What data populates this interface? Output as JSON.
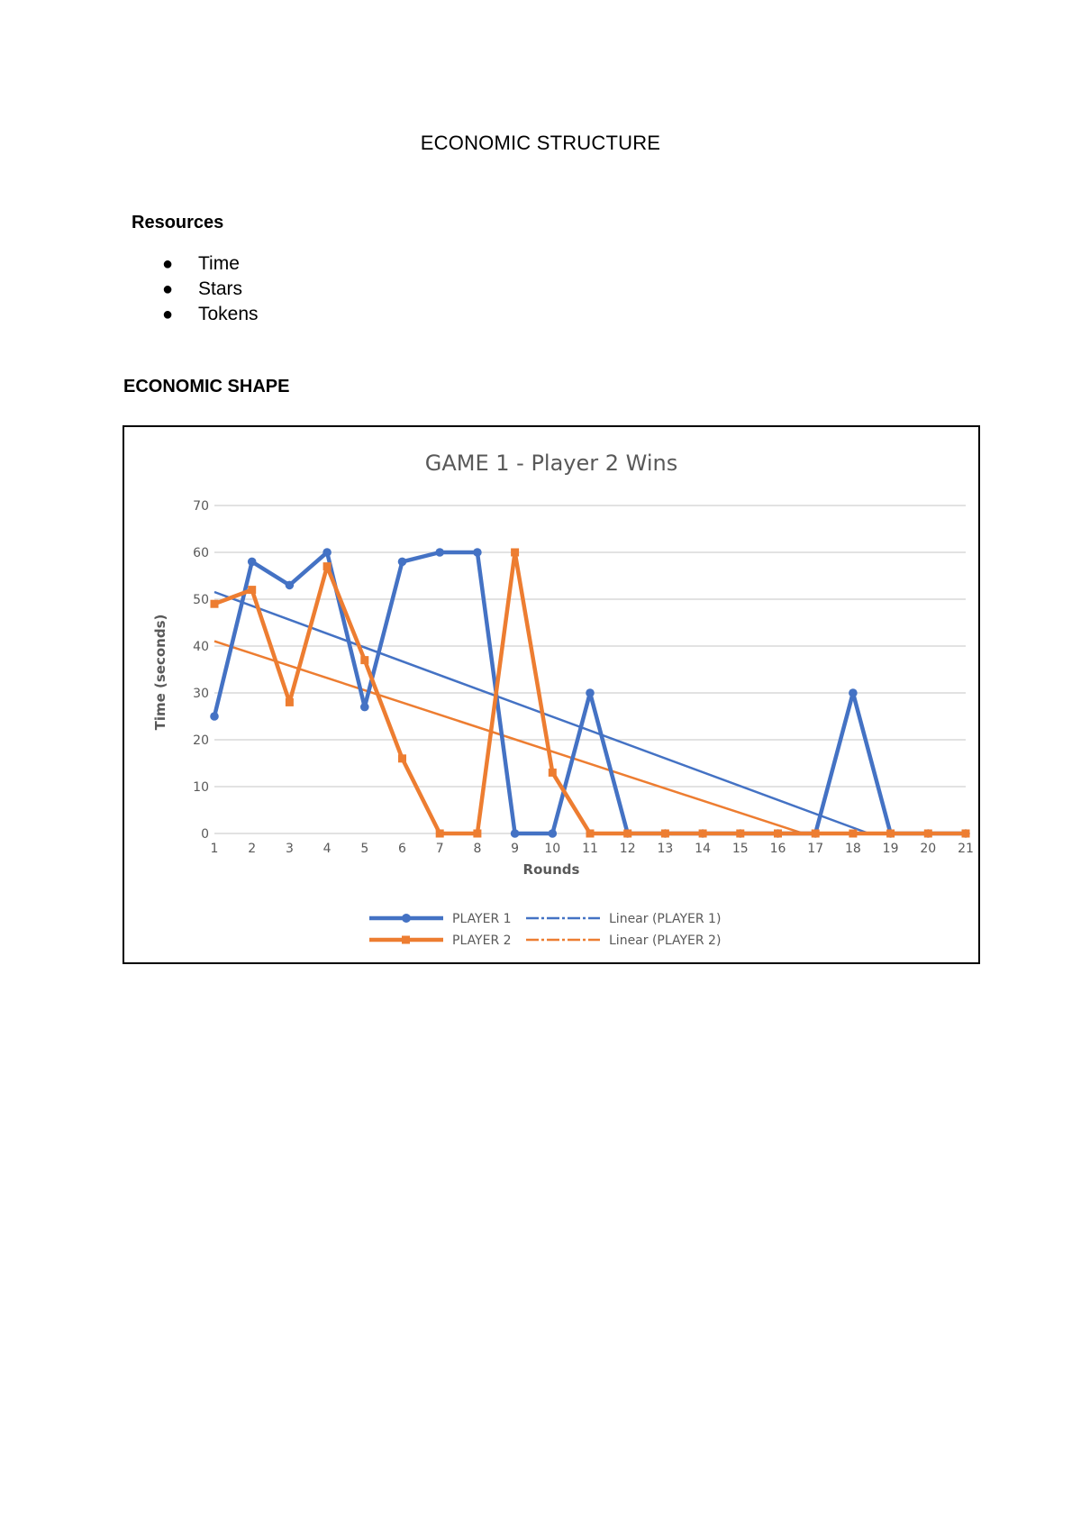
{
  "document": {
    "title": "ECONOMIC STRUCTURE",
    "resources_heading": "Resources",
    "resources": [
      "Time",
      "Stars",
      "Tokens"
    ],
    "shape_heading": "ECONOMIC SHAPE"
  },
  "chart_data": {
    "type": "line",
    "title": "GAME 1 - Player 2 Wins",
    "xlabel": "Rounds",
    "ylabel": "Time (seconds)",
    "x": [
      1,
      2,
      3,
      4,
      5,
      6,
      7,
      8,
      9,
      10,
      11,
      12,
      13,
      14,
      15,
      16,
      17,
      18,
      19,
      20,
      21
    ],
    "ylim": [
      0,
      70
    ],
    "yticks": [
      0,
      10,
      20,
      30,
      40,
      50,
      60,
      70
    ],
    "grid": true,
    "legend_position": "bottom",
    "series": [
      {
        "name": "PLAYER 1",
        "color": "#4472C4",
        "marker": "circle",
        "values": [
          25,
          58,
          53,
          60,
          27,
          58,
          60,
          60,
          0,
          0,
          30,
          0,
          0,
          0,
          0,
          0,
          0,
          30,
          0,
          0,
          0
        ]
      },
      {
        "name": "PLAYER 2",
        "color": "#ED7D31",
        "marker": "square",
        "values": [
          49,
          52,
          28,
          57,
          37,
          16,
          0,
          0,
          60,
          13,
          0,
          0,
          0,
          0,
          0,
          0,
          0,
          0,
          0,
          0,
          0
        ]
      }
    ],
    "trendlines": [
      {
        "name": "Linear (PLAYER 1)",
        "color": "#4472C4",
        "type": "linear",
        "of": "PLAYER 1"
      },
      {
        "name": "Linear (PLAYER 2)",
        "color": "#ED7D31",
        "type": "linear",
        "of": "PLAYER 2"
      }
    ]
  }
}
